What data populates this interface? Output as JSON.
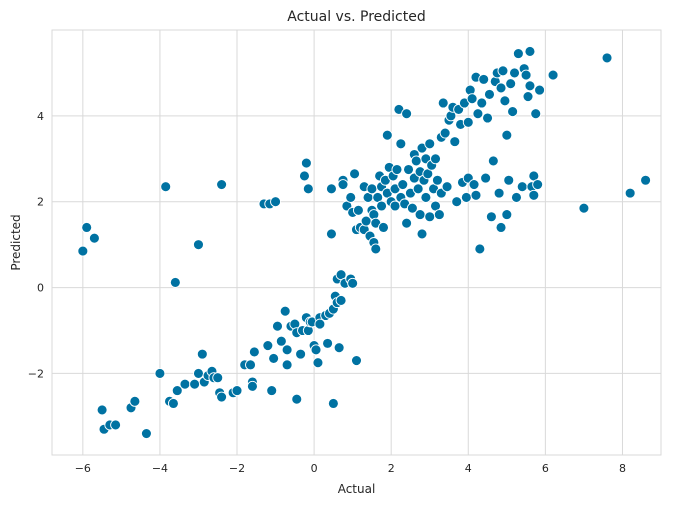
{
  "chart_data": {
    "type": "scatter",
    "title": "Actual vs. Predicted",
    "xlabel": "Actual",
    "ylabel": "Predicted",
    "xlim": [
      -6.8,
      9.0
    ],
    "ylim": [
      -3.9,
      6.0
    ],
    "xticks": [
      -6,
      -4,
      -2,
      0,
      2,
      4,
      6,
      8
    ],
    "yticks": [
      -2,
      0,
      2,
      4
    ],
    "grid": true,
    "marker_color": "#0072a2",
    "marker_edge_color": "#ffffff",
    "background_color": "#ffffff",
    "grid_color": "#d9d9d9",
    "points": [
      {
        "x": -6.0,
        "y": 0.85
      },
      {
        "x": -5.9,
        "y": 1.4
      },
      {
        "x": -5.7,
        "y": 1.15
      },
      {
        "x": -5.5,
        "y": -2.85
      },
      {
        "x": -5.45,
        "y": -3.3
      },
      {
        "x": -5.3,
        "y": -3.2
      },
      {
        "x": -5.15,
        "y": -3.2
      },
      {
        "x": -4.75,
        "y": -2.8
      },
      {
        "x": -4.65,
        "y": -2.65
      },
      {
        "x": -4.35,
        "y": -3.4
      },
      {
        "x": -4.0,
        "y": -2.0
      },
      {
        "x": -3.85,
        "y": 2.35
      },
      {
        "x": -3.75,
        "y": -2.65
      },
      {
        "x": -3.65,
        "y": -2.7
      },
      {
        "x": -3.6,
        "y": 0.12
      },
      {
        "x": -3.55,
        "y": -2.4
      },
      {
        "x": -3.35,
        "y": -2.25
      },
      {
        "x": -3.1,
        "y": -2.25
      },
      {
        "x": -3.0,
        "y": 1.0
      },
      {
        "x": -3.0,
        "y": -2.0
      },
      {
        "x": -2.9,
        "y": -1.55
      },
      {
        "x": -2.85,
        "y": -2.2
      },
      {
        "x": -2.75,
        "y": -2.05
      },
      {
        "x": -2.65,
        "y": -1.95
      },
      {
        "x": -2.6,
        "y": -2.1
      },
      {
        "x": -2.5,
        "y": -2.1
      },
      {
        "x": -2.45,
        "y": -2.45
      },
      {
        "x": -2.4,
        "y": -2.55
      },
      {
        "x": -2.4,
        "y": 2.4
      },
      {
        "x": -2.1,
        "y": -2.45
      },
      {
        "x": -2.0,
        "y": -2.4
      },
      {
        "x": -1.8,
        "y": -1.8
      },
      {
        "x": -1.65,
        "y": -1.8
      },
      {
        "x": -1.6,
        "y": -2.2
      },
      {
        "x": -1.6,
        "y": -2.3
      },
      {
        "x": -1.55,
        "y": -1.5
      },
      {
        "x": -1.3,
        "y": 1.95
      },
      {
        "x": -1.2,
        "y": -1.35
      },
      {
        "x": -1.15,
        "y": 1.95
      },
      {
        "x": -1.1,
        "y": -2.4
      },
      {
        "x": -1.05,
        "y": -1.65
      },
      {
        "x": -1.0,
        "y": 2.0
      },
      {
        "x": -0.95,
        "y": -0.9
      },
      {
        "x": -0.85,
        "y": -1.25
      },
      {
        "x": -0.75,
        "y": -0.55
      },
      {
        "x": -0.7,
        "y": -1.45
      },
      {
        "x": -0.7,
        "y": -1.8
      },
      {
        "x": -0.6,
        "y": -0.9
      },
      {
        "x": -0.5,
        "y": -0.85
      },
      {
        "x": -0.45,
        "y": -1.05
      },
      {
        "x": -0.45,
        "y": -2.6
      },
      {
        "x": -0.35,
        "y": -1.55
      },
      {
        "x": -0.3,
        "y": -1.0
      },
      {
        "x": -0.25,
        "y": 2.6
      },
      {
        "x": -0.2,
        "y": 2.9
      },
      {
        "x": -0.2,
        "y": -0.7
      },
      {
        "x": -0.15,
        "y": 2.3
      },
      {
        "x": -0.15,
        "y": -1.0
      },
      {
        "x": -0.1,
        "y": -0.8
      },
      {
        "x": -0.05,
        "y": -0.8
      },
      {
        "x": 0.0,
        "y": -1.35
      },
      {
        "x": 0.05,
        "y": -1.45
      },
      {
        "x": 0.1,
        "y": -1.75
      },
      {
        "x": 0.15,
        "y": -0.7
      },
      {
        "x": 0.15,
        "y": -0.85
      },
      {
        "x": 0.3,
        "y": -0.65
      },
      {
        "x": 0.35,
        "y": -1.3
      },
      {
        "x": 0.4,
        "y": -0.6
      },
      {
        "x": 0.45,
        "y": 2.3
      },
      {
        "x": 0.45,
        "y": 1.25
      },
      {
        "x": 0.5,
        "y": -0.5
      },
      {
        "x": 0.5,
        "y": -2.7
      },
      {
        "x": 0.55,
        "y": -0.2
      },
      {
        "x": 0.6,
        "y": -0.35
      },
      {
        "x": 0.6,
        "y": 0.2
      },
      {
        "x": 0.65,
        "y": -1.4
      },
      {
        "x": 0.7,
        "y": 0.3
      },
      {
        "x": 0.7,
        "y": -0.3
      },
      {
        "x": 0.75,
        "y": 2.5
      },
      {
        "x": 0.75,
        "y": 2.4
      },
      {
        "x": 0.8,
        "y": 0.1
      },
      {
        "x": 0.85,
        "y": 1.9
      },
      {
        "x": 0.95,
        "y": 2.1
      },
      {
        "x": 0.95,
        "y": 0.2
      },
      {
        "x": 1.0,
        "y": 1.75
      },
      {
        "x": 1.0,
        "y": 0.1
      },
      {
        "x": 1.05,
        "y": 2.65
      },
      {
        "x": 1.1,
        "y": -1.7
      },
      {
        "x": 1.1,
        "y": 1.35
      },
      {
        "x": 1.15,
        "y": 1.8
      },
      {
        "x": 1.2,
        "y": 1.4
      },
      {
        "x": 1.3,
        "y": 1.35
      },
      {
        "x": 1.3,
        "y": 2.35
      },
      {
        "x": 1.35,
        "y": 1.55
      },
      {
        "x": 1.4,
        "y": 2.1
      },
      {
        "x": 1.45,
        "y": 1.2
      },
      {
        "x": 1.5,
        "y": 1.8
      },
      {
        "x": 1.5,
        "y": 2.3
      },
      {
        "x": 1.55,
        "y": 1.05
      },
      {
        "x": 1.55,
        "y": 1.7
      },
      {
        "x": 1.6,
        "y": 0.9
      },
      {
        "x": 1.6,
        "y": 1.5
      },
      {
        "x": 1.65,
        "y": 2.1
      },
      {
        "x": 1.7,
        "y": 2.6
      },
      {
        "x": 1.75,
        "y": 1.9
      },
      {
        "x": 1.75,
        "y": 2.35
      },
      {
        "x": 1.8,
        "y": 1.4
      },
      {
        "x": 1.85,
        "y": 2.5
      },
      {
        "x": 1.9,
        "y": 2.2
      },
      {
        "x": 1.9,
        "y": 3.55
      },
      {
        "x": 1.95,
        "y": 2.8
      },
      {
        "x": 2.0,
        "y": 2.0
      },
      {
        "x": 2.05,
        "y": 2.6
      },
      {
        "x": 2.1,
        "y": 1.9
      },
      {
        "x": 2.1,
        "y": 2.3
      },
      {
        "x": 2.15,
        "y": 2.75
      },
      {
        "x": 2.2,
        "y": 4.15
      },
      {
        "x": 2.25,
        "y": 2.1
      },
      {
        "x": 2.25,
        "y": 3.35
      },
      {
        "x": 2.3,
        "y": 2.4
      },
      {
        "x": 2.35,
        "y": 1.95
      },
      {
        "x": 2.4,
        "y": 4.05
      },
      {
        "x": 2.4,
        "y": 1.5
      },
      {
        "x": 2.45,
        "y": 2.75
      },
      {
        "x": 2.5,
        "y": 2.2
      },
      {
        "x": 2.55,
        "y": 1.85
      },
      {
        "x": 2.6,
        "y": 2.55
      },
      {
        "x": 2.6,
        "y": 3.1
      },
      {
        "x": 2.65,
        "y": 2.95
      },
      {
        "x": 2.7,
        "y": 2.3
      },
      {
        "x": 2.75,
        "y": 1.7
      },
      {
        "x": 2.75,
        "y": 2.7
      },
      {
        "x": 2.8,
        "y": 1.25
      },
      {
        "x": 2.8,
        "y": 3.25
      },
      {
        "x": 2.85,
        "y": 2.5
      },
      {
        "x": 2.9,
        "y": 2.1
      },
      {
        "x": 2.9,
        "y": 3.0
      },
      {
        "x": 2.95,
        "y": 2.65
      },
      {
        "x": 3.0,
        "y": 3.35
      },
      {
        "x": 3.0,
        "y": 1.65
      },
      {
        "x": 3.05,
        "y": 2.85
      },
      {
        "x": 3.1,
        "y": 2.3
      },
      {
        "x": 3.15,
        "y": 3.0
      },
      {
        "x": 3.15,
        "y": 1.9
      },
      {
        "x": 3.2,
        "y": 2.5
      },
      {
        "x": 3.25,
        "y": 1.7
      },
      {
        "x": 3.3,
        "y": 3.5
      },
      {
        "x": 3.3,
        "y": 2.2
      },
      {
        "x": 3.35,
        "y": 4.3
      },
      {
        "x": 3.4,
        "y": 3.6
      },
      {
        "x": 3.45,
        "y": 2.35
      },
      {
        "x": 3.5,
        "y": 3.9
      },
      {
        "x": 3.55,
        "y": 4.0
      },
      {
        "x": 3.6,
        "y": 4.2
      },
      {
        "x": 3.65,
        "y": 3.4
      },
      {
        "x": 3.7,
        "y": 2.0
      },
      {
        "x": 3.75,
        "y": 4.15
      },
      {
        "x": 3.8,
        "y": 3.8
      },
      {
        "x": 3.85,
        "y": 2.45
      },
      {
        "x": 3.9,
        "y": 4.3
      },
      {
        "x": 3.95,
        "y": 2.1
      },
      {
        "x": 4.0,
        "y": 3.85
      },
      {
        "x": 4.0,
        "y": 2.55
      },
      {
        "x": 4.05,
        "y": 4.6
      },
      {
        "x": 4.1,
        "y": 4.4
      },
      {
        "x": 4.15,
        "y": 2.4
      },
      {
        "x": 4.2,
        "y": 4.9
      },
      {
        "x": 4.2,
        "y": 2.15
      },
      {
        "x": 4.25,
        "y": 4.05
      },
      {
        "x": 4.3,
        "y": 0.9
      },
      {
        "x": 4.35,
        "y": 4.3
      },
      {
        "x": 4.4,
        "y": 4.85
      },
      {
        "x": 4.45,
        "y": 2.55
      },
      {
        "x": 4.5,
        "y": 3.95
      },
      {
        "x": 4.55,
        "y": 4.5
      },
      {
        "x": 4.6,
        "y": 1.65
      },
      {
        "x": 4.65,
        "y": 2.95
      },
      {
        "x": 4.7,
        "y": 4.8
      },
      {
        "x": 4.75,
        "y": 5.0
      },
      {
        "x": 4.8,
        "y": 2.2
      },
      {
        "x": 4.85,
        "y": 1.4
      },
      {
        "x": 4.85,
        "y": 4.65
      },
      {
        "x": 4.9,
        "y": 5.05
      },
      {
        "x": 4.95,
        "y": 4.35
      },
      {
        "x": 5.0,
        "y": 3.55
      },
      {
        "x": 5.0,
        "y": 1.7
      },
      {
        "x": 5.05,
        "y": 2.5
      },
      {
        "x": 5.1,
        "y": 4.75
      },
      {
        "x": 5.15,
        "y": 4.1
      },
      {
        "x": 5.2,
        "y": 5.0
      },
      {
        "x": 5.25,
        "y": 2.1
      },
      {
        "x": 5.3,
        "y": 5.45
      },
      {
        "x": 5.4,
        "y": 2.35
      },
      {
        "x": 5.45,
        "y": 5.1
      },
      {
        "x": 5.5,
        "y": 4.95
      },
      {
        "x": 5.55,
        "y": 4.45
      },
      {
        "x": 5.6,
        "y": 5.5
      },
      {
        "x": 5.6,
        "y": 4.7
      },
      {
        "x": 5.65,
        "y": 2.35
      },
      {
        "x": 5.7,
        "y": 2.6
      },
      {
        "x": 5.7,
        "y": 2.15
      },
      {
        "x": 5.75,
        "y": 4.05
      },
      {
        "x": 5.8,
        "y": 2.4
      },
      {
        "x": 5.85,
        "y": 4.6
      },
      {
        "x": 6.2,
        "y": 4.95
      },
      {
        "x": 7.0,
        "y": 1.85
      },
      {
        "x": 7.6,
        "y": 5.35
      },
      {
        "x": 8.2,
        "y": 2.2
      },
      {
        "x": 8.6,
        "y": 2.5
      }
    ]
  }
}
